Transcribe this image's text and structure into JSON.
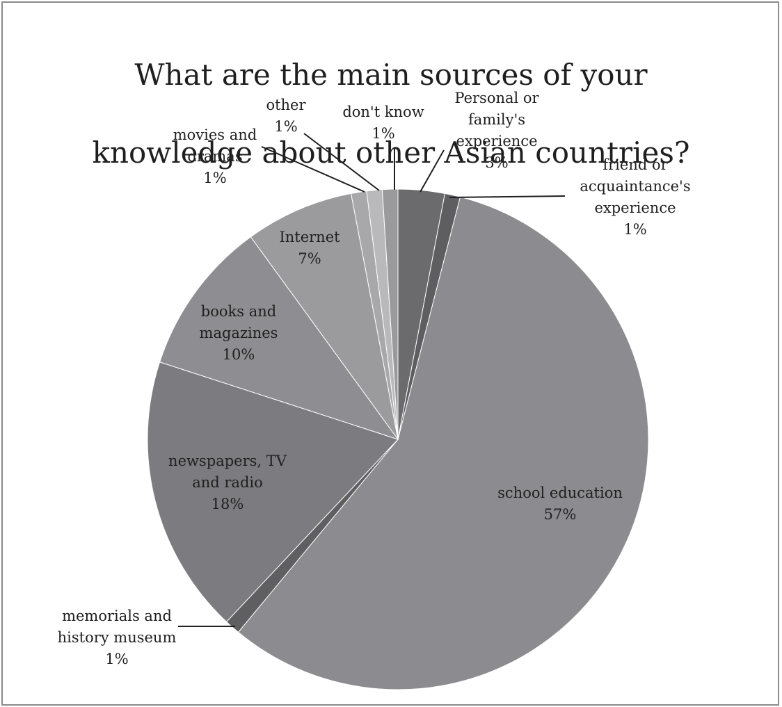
{
  "chart_data": {
    "type": "pie",
    "title": "What are the main sources of your knowledge about other Asian countries?",
    "slices": [
      {
        "label": "Personal or family's experience",
        "value": 3,
        "value_label": "3%",
        "color": "#6b6b6d"
      },
      {
        "label": "friend or acquaintance's experience",
        "value": 1,
        "value_label": "1%",
        "color": "#5e5e60"
      },
      {
        "label": "school education",
        "value": 57,
        "value_label": "57%",
        "color": "#8c8c90"
      },
      {
        "label": "memorials and history museum",
        "value": 1,
        "value_label": "1%",
        "color": "#5f5f61"
      },
      {
        "label": "newspapers, TV and radio",
        "value": 18,
        "value_label": "18%",
        "color": "#7c7c80"
      },
      {
        "label": "books and magazines",
        "value": 10,
        "value_label": "10%",
        "color": "#8e8e92"
      },
      {
        "label": "Internet",
        "value": 7,
        "value_label": "7%",
        "color": "#9b9b9e"
      },
      {
        "label": "movies and dramas",
        "value": 1,
        "value_label": "1%",
        "color": "#a8a8ab"
      },
      {
        "label": "other",
        "value": 1,
        "value_label": "1%",
        "color": "#b9b9bc"
      },
      {
        "label": "don't know",
        "value": 1,
        "value_label": "1%",
        "color": "#9a9a9d"
      }
    ]
  },
  "labels": [
    {
      "lines": [
        "Personal or",
        "family's",
        "experience"
      ],
      "value_label": "3%"
    },
    {
      "lines": [
        "friend or",
        "acquaintance's",
        "experience"
      ],
      "value_label": "1%"
    },
    {
      "lines": [
        "school education"
      ],
      "value_label": "57%"
    },
    {
      "lines": [
        "memorials and",
        "history museum"
      ],
      "value_label": "1%"
    },
    {
      "lines": [
        "newspapers, TV",
        "and radio"
      ],
      "value_label": "18%"
    },
    {
      "lines": [
        "books  and",
        "magazines"
      ],
      "value_label": "10%"
    },
    {
      "lines": [
        "Internet"
      ],
      "value_label": "7%"
    },
    {
      "lines": [
        "movies and",
        "dramas"
      ],
      "value_label": "1%"
    },
    {
      "lines": [
        "other"
      ],
      "value_label": "1%"
    },
    {
      "lines": [
        "don't know"
      ],
      "value_label": "1%"
    }
  ],
  "title_lines": [
    "What are the main sources of your",
    "knowledge about other Asian countries?"
  ]
}
